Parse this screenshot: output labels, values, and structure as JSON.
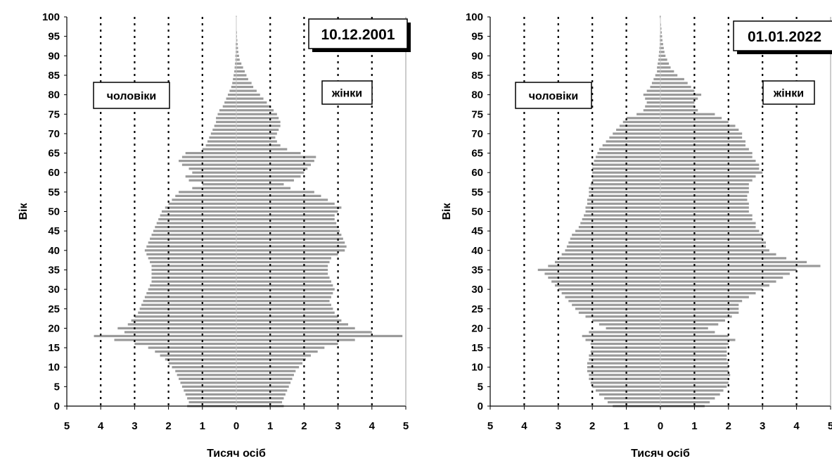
{
  "chart_data": [
    {
      "type": "bar",
      "orientation": "horizontal",
      "date": "10.12.2001",
      "xlabel": "Тисяч осіб",
      "ylabel": "Вік",
      "xlim": [
        -5,
        5
      ],
      "ylim": [
        0,
        100
      ],
      "x_ticks": [
        "5",
        "4",
        "3",
        "2",
        "1",
        "0",
        "1",
        "2",
        "3",
        "4",
        "5"
      ],
      "y_ticks": [
        "0",
        "5",
        "10",
        "15",
        "20",
        "25",
        "30",
        "35",
        "40",
        "45",
        "50",
        "55",
        "60",
        "65",
        "70",
        "75",
        "80",
        "85",
        "90",
        "95",
        "100"
      ],
      "grid": "vertical dotted lines at every 1 thousand",
      "series": [
        {
          "name": "чоловіки",
          "side": "left",
          "values": [
            1.45,
            1.4,
            1.45,
            1.5,
            1.55,
            1.6,
            1.65,
            1.7,
            1.75,
            1.8,
            1.9,
            2.0,
            2.1,
            2.25,
            2.4,
            2.6,
            3.0,
            3.6,
            4.2,
            3.3,
            3.5,
            3.2,
            3.1,
            3.0,
            2.9,
            2.85,
            2.8,
            2.75,
            2.7,
            2.65,
            2.6,
            2.55,
            2.5,
            2.5,
            2.5,
            2.5,
            2.5,
            2.55,
            2.6,
            2.65,
            2.7,
            2.65,
            2.6,
            2.55,
            2.5,
            2.45,
            2.4,
            2.35,
            2.3,
            2.25,
            2.2,
            2.1,
            2.0,
            1.9,
            1.8,
            1.7,
            1.3,
            1.0,
            1.4,
            1.5,
            1.3,
            1.4,
            1.6,
            1.7,
            1.6,
            1.5,
            1.0,
            0.9,
            0.85,
            0.8,
            0.75,
            0.7,
            0.65,
            0.6,
            0.6,
            0.55,
            0.5,
            0.4,
            0.35,
            0.3,
            0.25,
            0.2,
            0.15,
            0.12,
            0.1,
            0.08,
            0.06,
            0.05,
            0.04,
            0.03,
            0.03,
            0.02,
            0.02,
            0.02,
            0.01,
            0.01,
            0.01,
            0.01,
            0.01,
            0.01,
            0.01
          ]
        },
        {
          "name": "жінки",
          "side": "right",
          "values": [
            1.4,
            1.35,
            1.4,
            1.45,
            1.5,
            1.55,
            1.6,
            1.65,
            1.7,
            1.75,
            1.85,
            1.95,
            2.05,
            2.2,
            2.4,
            2.6,
            3.0,
            3.5,
            4.9,
            4.0,
            3.5,
            3.3,
            3.1,
            3.0,
            2.9,
            2.85,
            2.8,
            2.75,
            2.8,
            2.85,
            2.9,
            2.85,
            2.8,
            2.75,
            2.7,
            2.7,
            2.7,
            2.75,
            2.8,
            3.0,
            3.2,
            3.25,
            3.2,
            3.15,
            3.1,
            3.05,
            3.0,
            2.95,
            2.9,
            2.9,
            3.0,
            3.1,
            2.9,
            2.7,
            2.5,
            2.3,
            1.6,
            1.4,
            1.7,
            1.9,
            2.0,
            2.1,
            2.2,
            2.3,
            2.35,
            1.9,
            1.5,
            1.3,
            1.2,
            1.15,
            1.2,
            1.25,
            1.3,
            1.3,
            1.25,
            1.2,
            1.1,
            1.0,
            0.9,
            0.8,
            0.7,
            0.6,
            0.5,
            0.45,
            0.35,
            0.3,
            0.25,
            0.2,
            0.15,
            0.1,
            0.08,
            0.06,
            0.05,
            0.04,
            0.03,
            0.02,
            0.02,
            0.01,
            0.01,
            0.01,
            0.01
          ]
        }
      ]
    },
    {
      "type": "bar",
      "orientation": "horizontal",
      "date": "01.01.2022",
      "xlabel": "Тисяч осіб",
      "ylabel": "Вік",
      "xlim": [
        -5,
        5
      ],
      "ylim": [
        0,
        100
      ],
      "x_ticks": [
        "5",
        "4",
        "3",
        "2",
        "1",
        "0",
        "1",
        "2",
        "3",
        "4",
        "5"
      ],
      "y_ticks": [
        "0",
        "5",
        "10",
        "15",
        "20",
        "25",
        "30",
        "35",
        "40",
        "45",
        "50",
        "55",
        "60",
        "65",
        "70",
        "75",
        "80",
        "85",
        "90",
        "95",
        "100"
      ],
      "grid": "vertical dotted lines at every 1 thousand",
      "series": [
        {
          "name": "чоловіки",
          "side": "left",
          "values": [
            1.4,
            1.55,
            1.65,
            1.8,
            1.9,
            2.0,
            2.05,
            2.1,
            2.1,
            2.15,
            2.15,
            2.15,
            2.1,
            2.1,
            2.05,
            2.0,
            2.05,
            2.2,
            2.3,
            2.1,
            1.6,
            1.8,
            2.0,
            2.2,
            2.4,
            2.5,
            2.6,
            2.7,
            2.8,
            2.9,
            3.0,
            3.1,
            3.2,
            3.3,
            3.4,
            3.6,
            3.3,
            3.1,
            3.0,
            2.9,
            2.8,
            2.75,
            2.7,
            2.65,
            2.6,
            2.5,
            2.4,
            2.35,
            2.3,
            2.25,
            2.2,
            2.2,
            2.15,
            2.15,
            2.1,
            2.1,
            2.1,
            2.05,
            2.0,
            2.0,
            2.0,
            2.0,
            2.0,
            1.95,
            1.9,
            1.85,
            1.8,
            1.7,
            1.6,
            1.5,
            1.4,
            1.3,
            1.2,
            1.1,
            1.0,
            0.7,
            0.5,
            0.45,
            0.4,
            0.45,
            0.5,
            0.4,
            0.3,
            0.25,
            0.2,
            0.15,
            0.1,
            0.1,
            0.08,
            0.06,
            0.05,
            0.04,
            0.03,
            0.02,
            0.02,
            0.02,
            0.01,
            0.01,
            0.01,
            0.01,
            0.02
          ]
        },
        {
          "name": "жінки",
          "side": "right",
          "values": [
            1.3,
            1.45,
            1.6,
            1.75,
            1.85,
            1.95,
            2.0,
            2.0,
            2.05,
            2.0,
            2.0,
            2.0,
            1.95,
            1.95,
            1.95,
            1.95,
            2.0,
            2.2,
            2.0,
            1.6,
            1.4,
            1.7,
            1.9,
            2.1,
            2.3,
            2.3,
            2.3,
            2.4,
            2.6,
            2.8,
            3.0,
            3.2,
            3.4,
            3.6,
            3.8,
            4.0,
            4.7,
            4.3,
            3.7,
            3.4,
            3.2,
            3.1,
            3.1,
            3.0,
            3.0,
            2.9,
            2.8,
            2.8,
            2.7,
            2.7,
            2.6,
            2.6,
            2.6,
            2.55,
            2.55,
            2.6,
            2.6,
            2.6,
            2.7,
            2.8,
            3.0,
            2.9,
            2.9,
            2.8,
            2.7,
            2.7,
            2.6,
            2.5,
            2.5,
            2.4,
            2.4,
            2.3,
            2.2,
            2.0,
            1.8,
            1.6,
            1.1,
            1.0,
            1.0,
            1.1,
            1.2,
            1.0,
            0.9,
            0.8,
            0.7,
            0.5,
            0.4,
            0.3,
            0.25,
            0.2,
            0.15,
            0.12,
            0.1,
            0.08,
            0.06,
            0.05,
            0.04,
            0.03,
            0.02,
            0.01,
            0.01
          ]
        }
      ]
    }
  ]
}
